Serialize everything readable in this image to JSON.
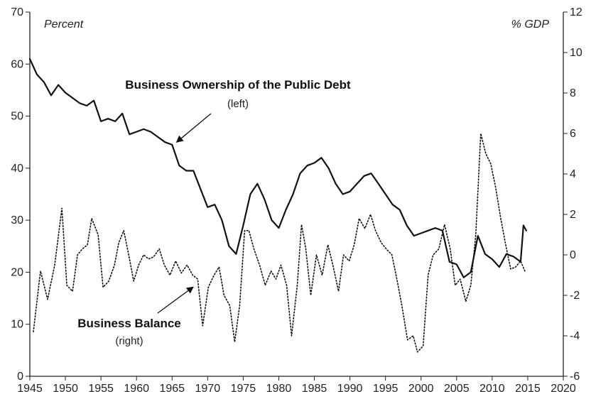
{
  "chart_data": {
    "type": "line",
    "left_axis": {
      "label": "Percent",
      "range": [
        0,
        70
      ],
      "ticks": [
        "0",
        "10",
        "20",
        "30",
        "40",
        "50",
        "60",
        "70"
      ]
    },
    "right_axis": {
      "label": "% GDP",
      "range": [
        -6,
        12
      ],
      "ticks": [
        "-6",
        "-4",
        "-2",
        "0",
        "2",
        "4",
        "6",
        "8",
        "10",
        "12"
      ]
    },
    "x_axis": {
      "range": [
        1945,
        2020
      ],
      "ticks": [
        "1945",
        "1950",
        "1955",
        "1960",
        "1965",
        "1970",
        "1975",
        "1980",
        "1985",
        "1990",
        "1995",
        "2000",
        "2005",
        "2010",
        "2015",
        "2020"
      ]
    },
    "grid": false,
    "series": [
      {
        "name": "Business Ownership of the Public Debt",
        "sub": "(left)",
        "axis": "left",
        "style": "solid",
        "points": [
          [
            1945,
            61
          ],
          [
            1946,
            58
          ],
          [
            1947,
            56.5
          ],
          [
            1948,
            54
          ],
          [
            1949,
            56
          ],
          [
            1950,
            54.5
          ],
          [
            1951,
            53.5
          ],
          [
            1952,
            52.5
          ],
          [
            1953,
            52
          ],
          [
            1954,
            53
          ],
          [
            1955,
            49
          ],
          [
            1956,
            49.5
          ],
          [
            1957,
            49
          ],
          [
            1958,
            50.5
          ],
          [
            1959,
            46.5
          ],
          [
            1960,
            47
          ],
          [
            1961,
            47.5
          ],
          [
            1962,
            47
          ],
          [
            1963,
            46
          ],
          [
            1964,
            45
          ],
          [
            1965,
            44.5
          ],
          [
            1966,
            40.5
          ],
          [
            1967,
            39.5
          ],
          [
            1968,
            39.5
          ],
          [
            1969,
            36
          ],
          [
            1970,
            32.5
          ],
          [
            1971,
            33
          ],
          [
            1972,
            30
          ],
          [
            1973,
            25
          ],
          [
            1974,
            23.5
          ],
          [
            1975,
            29
          ],
          [
            1976,
            35
          ],
          [
            1977,
            37
          ],
          [
            1978,
            34
          ],
          [
            1979,
            30
          ],
          [
            1980,
            28.5
          ],
          [
            1981,
            32
          ],
          [
            1982,
            35
          ],
          [
            1983,
            39
          ],
          [
            1984,
            40.5
          ],
          [
            1985,
            41
          ],
          [
            1986,
            42
          ],
          [
            1987,
            40
          ],
          [
            1988,
            37
          ],
          [
            1989,
            35
          ],
          [
            1990,
            35.5
          ],
          [
            1991,
            37
          ],
          [
            1992,
            38.5
          ],
          [
            1993,
            39
          ],
          [
            1994,
            37
          ],
          [
            1995,
            35
          ],
          [
            1996,
            33
          ],
          [
            1997,
            32
          ],
          [
            1998,
            29
          ],
          [
            1999,
            27
          ],
          [
            2000,
            27.5
          ],
          [
            2001,
            28
          ],
          [
            2002,
            28.5
          ],
          [
            2003,
            28
          ],
          [
            2004,
            22
          ],
          [
            2005,
            21.5
          ],
          [
            2006,
            19
          ],
          [
            2007,
            20
          ],
          [
            2008,
            27
          ],
          [
            2009,
            23.5
          ],
          [
            2010,
            22.5
          ],
          [
            2011,
            21
          ],
          [
            2012,
            23.5
          ],
          [
            2013,
            23
          ],
          [
            2014,
            22
          ],
          [
            2014.4,
            29
          ],
          [
            2014.8,
            28
          ]
        ]
      },
      {
        "name": "Business Balance",
        "sub": "(right)",
        "axis": "right",
        "style": "dotted",
        "points": [
          [
            1945.5,
            -3.8
          ],
          [
            1946.5,
            -0.8
          ],
          [
            1947.5,
            -2.2
          ],
          [
            1948.5,
            -0.5
          ],
          [
            1949.5,
            2.3
          ],
          [
            1950.2,
            -1.5
          ],
          [
            1951,
            -1.8
          ],
          [
            1951.7,
            0
          ],
          [
            1952.4,
            0.3
          ],
          [
            1953.1,
            0.5
          ],
          [
            1953.7,
            1.8
          ],
          [
            1954.6,
            1
          ],
          [
            1955.3,
            -1.6
          ],
          [
            1956.1,
            -1.3
          ],
          [
            1956.9,
            -0.5
          ],
          [
            1957.5,
            0.6
          ],
          [
            1958.2,
            1.2
          ],
          [
            1958.9,
            0
          ],
          [
            1959.6,
            -1.3
          ],
          [
            1960.3,
            -0.5
          ],
          [
            1961,
            0
          ],
          [
            1961.7,
            -0.2
          ],
          [
            1962.4,
            -0.1
          ],
          [
            1963.2,
            0.3
          ],
          [
            1963.9,
            -0.5
          ],
          [
            1964.7,
            -1
          ],
          [
            1965.5,
            -0.3
          ],
          [
            1966.3,
            -0.9
          ],
          [
            1967.1,
            -0.5
          ],
          [
            1967.9,
            -1
          ],
          [
            1968.6,
            -1.2
          ],
          [
            1969.3,
            -3.5
          ],
          [
            1970.1,
            -1.6
          ],
          [
            1970.9,
            -1
          ],
          [
            1971.6,
            -0.6
          ],
          [
            1972.3,
            -2
          ],
          [
            1973.1,
            -2.5
          ],
          [
            1973.8,
            -4.3
          ],
          [
            1974.5,
            -2.5
          ],
          [
            1975.2,
            1.2
          ],
          [
            1975.8,
            1.2
          ],
          [
            1976.5,
            0.3
          ],
          [
            1977.3,
            -0.5
          ],
          [
            1978.1,
            -1.5
          ],
          [
            1978.9,
            -0.8
          ],
          [
            1979.6,
            -1.2
          ],
          [
            1980.3,
            -0.5
          ],
          [
            1981.1,
            -1.5
          ],
          [
            1981.8,
            -4
          ],
          [
            1982.6,
            -1.5
          ],
          [
            1983.2,
            1.5
          ],
          [
            1983.8,
            0.3
          ],
          [
            1984.5,
            -2
          ],
          [
            1985.3,
            0
          ],
          [
            1986.1,
            -1
          ],
          [
            1986.9,
            0.5
          ],
          [
            1987.6,
            -0.5
          ],
          [
            1988.4,
            -1.8
          ],
          [
            1989.1,
            0
          ],
          [
            1989.9,
            -0.3
          ],
          [
            1990.6,
            0.5
          ],
          [
            1991.3,
            1.8
          ],
          [
            1992.1,
            1.3
          ],
          [
            1992.9,
            2
          ],
          [
            1993.6,
            1.2
          ],
          [
            1994.4,
            0.6
          ],
          [
            1995.1,
            0.3
          ],
          [
            1995.9,
            0
          ],
          [
            1996.6,
            -1.2
          ],
          [
            1997.3,
            -2.5
          ],
          [
            1998.1,
            -4.2
          ],
          [
            1998.9,
            -4
          ],
          [
            1999.5,
            -4.8
          ],
          [
            2000.3,
            -4.5
          ],
          [
            2001,
            -1
          ],
          [
            2001.7,
            0
          ],
          [
            2002.5,
            0.3
          ],
          [
            2003.3,
            1.5
          ],
          [
            2004.1,
            0.3
          ],
          [
            2004.8,
            -1.5
          ],
          [
            2005.5,
            -1.2
          ],
          [
            2006.3,
            -2.3
          ],
          [
            2007,
            -1.5
          ],
          [
            2007.7,
            1
          ],
          [
            2008.4,
            6
          ],
          [
            2009.1,
            5
          ],
          [
            2009.8,
            4.5
          ],
          [
            2010.5,
            3.3
          ],
          [
            2011.2,
            1.8
          ],
          [
            2011.9,
            0.5
          ],
          [
            2012.6,
            -0.7
          ],
          [
            2013.3,
            -0.6
          ],
          [
            2014,
            -0.3
          ],
          [
            2014.6,
            -0.8
          ]
        ]
      }
    ],
    "annotations": [
      {
        "label": "Business Ownership of the Public Debt",
        "sub": "(left)",
        "arrow_to": [
          1965.3,
          44.8
        ]
      },
      {
        "label": "Business Balance",
        "sub": "(right)",
        "arrow_to": [
          1968.2,
          17.5
        ]
      }
    ]
  }
}
